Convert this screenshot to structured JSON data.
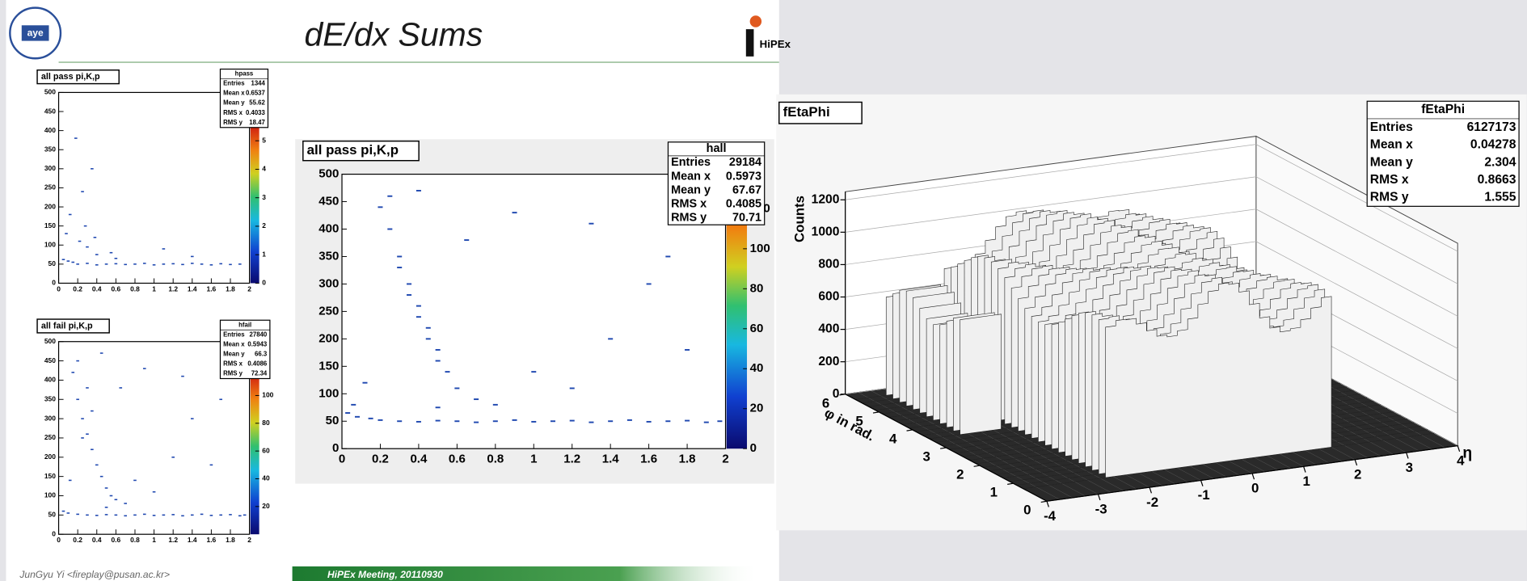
{
  "header": {
    "title": "dE/dx Sums",
    "logo_text": "aye",
    "brand": "HiPEx"
  },
  "footer": {
    "author": "JunGyu Yi <fireplay@pusan.ac.kr>",
    "meeting": "HiPEx Meeting, 20110930"
  },
  "chart_data": [
    {
      "type": "hist2d",
      "title": "all pass pi,K,p",
      "stats": {
        "name": "hpass",
        "rows": [
          {
            "label": "Entries",
            "value": 1344
          },
          {
            "label": "Mean x",
            "value": 0.6537
          },
          {
            "label": "Mean y",
            "value": 55.62
          },
          {
            "label": "RMS x",
            "value": 0.4033
          },
          {
            "label": "RMS y",
            "value": 18.47
          }
        ]
      },
      "x": [
        0.05,
        0.1,
        0.15,
        0.2,
        0.3,
        0.4,
        0.5,
        0.6,
        0.7,
        0.8,
        0.9,
        1.0,
        1.1,
        1.2,
        1.3,
        1.4,
        1.5,
        1.6,
        1.7,
        1.8,
        1.9,
        0.08,
        0.12,
        0.25,
        0.35,
        0.18,
        0.22,
        0.3,
        0.4,
        0.55,
        0.28,
        0.38,
        0.6,
        1.1,
        1.4
      ],
      "y": [
        62,
        58,
        55,
        50,
        52,
        48,
        50,
        51,
        49,
        50,
        52,
        48,
        50,
        51,
        49,
        52,
        50,
        48,
        51,
        49,
        50,
        130,
        180,
        240,
        300,
        380,
        110,
        95,
        75,
        80,
        150,
        120,
        65,
        90,
        70
      ],
      "color": "#1f48b0",
      "xlim": [
        0,
        2
      ],
      "ylim": [
        0,
        500
      ],
      "zlim": [
        0,
        5.5
      ],
      "xticks": [
        0,
        0.2,
        0.4,
        0.6,
        0.8,
        1,
        1.2,
        1.4,
        1.6,
        1.8,
        2
      ],
      "yticks": [
        0,
        50,
        100,
        150,
        200,
        250,
        300,
        350,
        400,
        450,
        500
      ],
      "zticks": [
        0,
        1,
        2,
        3,
        4,
        5
      ]
    },
    {
      "type": "hist2d",
      "title": "all fail pi,K,p",
      "stats": {
        "name": "hfail",
        "rows": [
          {
            "label": "Entries",
            "value": 27840
          },
          {
            "label": "Mean x",
            "value": 0.5943
          },
          {
            "label": "Mean y",
            "value": 66.3
          },
          {
            "label": "RMS x",
            "value": 0.4086
          },
          {
            "label": "RMS y",
            "value": 72.34
          }
        ]
      },
      "x": [
        0.05,
        0.1,
        0.2,
        0.3,
        0.4,
        0.5,
        0.6,
        0.7,
        0.8,
        0.9,
        1.0,
        1.1,
        1.2,
        1.3,
        1.4,
        1.5,
        1.6,
        1.7,
        1.8,
        1.9,
        1.95,
        0.15,
        0.2,
        0.25,
        0.3,
        0.35,
        0.4,
        0.45,
        0.5,
        0.3,
        0.35,
        0.25,
        0.55,
        0.6,
        0.7,
        0.8,
        1.0,
        1.2,
        1.4,
        1.6,
        0.2,
        0.45,
        0.65,
        0.9,
        1.3,
        1.7,
        0.12,
        0.5
      ],
      "y": [
        60,
        55,
        52,
        50,
        49,
        51,
        50,
        48,
        50,
        52,
        49,
        50,
        51,
        48,
        50,
        52,
        49,
        50,
        51,
        48,
        50,
        420,
        350,
        300,
        260,
        220,
        180,
        150,
        120,
        380,
        320,
        250,
        100,
        90,
        80,
        140,
        110,
        200,
        300,
        180,
        450,
        470,
        380,
        430,
        410,
        350,
        140,
        70
      ],
      "color": "#1f48b0",
      "xlim": [
        0,
        2
      ],
      "ylim": [
        0,
        500
      ],
      "zlim": [
        0,
        115
      ],
      "xticks": [
        0,
        0.2,
        0.4,
        0.6,
        0.8,
        1,
        1.2,
        1.4,
        1.6,
        1.8,
        2
      ],
      "yticks": [
        0,
        50,
        100,
        150,
        200,
        250,
        300,
        350,
        400,
        450,
        500
      ],
      "zticks": [
        20,
        40,
        60,
        80,
        100
      ]
    },
    {
      "type": "hist2d",
      "title": "all pass pi,K,p",
      "stats": {
        "name": "hall",
        "rows": [
          {
            "label": "Entries",
            "value": 29184
          },
          {
            "label": "Mean x",
            "value": 0.5973
          },
          {
            "label": "Mean y",
            "value": 67.67
          },
          {
            "label": "RMS x",
            "value": 0.4085
          },
          {
            "label": "RMS y",
            "value": 70.71
          }
        ]
      },
      "x": [
        0.03,
        0.08,
        0.15,
        0.2,
        0.3,
        0.4,
        0.5,
        0.6,
        0.7,
        0.8,
        0.9,
        1.0,
        1.1,
        1.2,
        1.3,
        1.4,
        1.5,
        1.6,
        1.7,
        1.8,
        1.9,
        1.97,
        0.2,
        0.25,
        0.3,
        0.35,
        0.4,
        0.45,
        0.5,
        0.55,
        0.3,
        0.35,
        0.4,
        0.45,
        0.5,
        0.6,
        0.7,
        0.8,
        1.0,
        1.2,
        1.4,
        1.6,
        1.8,
        0.25,
        0.4,
        0.65,
        0.9,
        1.3,
        1.7,
        0.12,
        0.5,
        0.06
      ],
      "y": [
        65,
        58,
        55,
        52,
        50,
        49,
        51,
        50,
        48,
        50,
        52,
        49,
        50,
        51,
        48,
        50,
        52,
        49,
        50,
        51,
        48,
        50,
        440,
        400,
        350,
        300,
        260,
        220,
        180,
        140,
        330,
        280,
        240,
        200,
        160,
        110,
        90,
        80,
        140,
        110,
        200,
        300,
        180,
        460,
        470,
        380,
        430,
        410,
        350,
        120,
        75,
        80
      ],
      "color": "#1f48b0",
      "xlim": [
        0,
        2
      ],
      "ylim": [
        0,
        500
      ],
      "zlim": [
        0,
        130
      ],
      "xticks": [
        0,
        0.2,
        0.4,
        0.6,
        0.8,
        1,
        1.2,
        1.4,
        1.6,
        1.8,
        2
      ],
      "yticks": [
        0,
        50,
        100,
        150,
        200,
        250,
        300,
        350,
        400,
        450,
        500
      ],
      "zticks": [
        0,
        20,
        40,
        60,
        80,
        100,
        120
      ]
    },
    {
      "type": "lego",
      "title": "fEtaPhi",
      "stats": {
        "name": "fEtaPhi",
        "rows": [
          {
            "label": "Entries",
            "value": 6127173
          },
          {
            "label": "Mean x",
            "value": 0.04278
          },
          {
            "label": "Mean y",
            "value": 2.304
          },
          {
            "label": "RMS x",
            "value": 0.8663
          },
          {
            "label": "RMS y",
            "value": 1.555
          }
        ]
      },
      "xlabel": "η",
      "ylabel": "φ in rad.",
      "zlabel": "Counts",
      "xlim": [
        -4,
        4
      ],
      "ylim": [
        0,
        6
      ],
      "zlim": [
        0,
        1250
      ],
      "xticks": [
        -4,
        -3,
        -2,
        -1,
        0,
        1,
        2,
        3,
        4
      ],
      "yticks": [
        0,
        1,
        2,
        3,
        4,
        5,
        6
      ],
      "zticks": [
        0,
        200,
        400,
        600,
        800,
        1000,
        1200
      ]
    }
  ]
}
